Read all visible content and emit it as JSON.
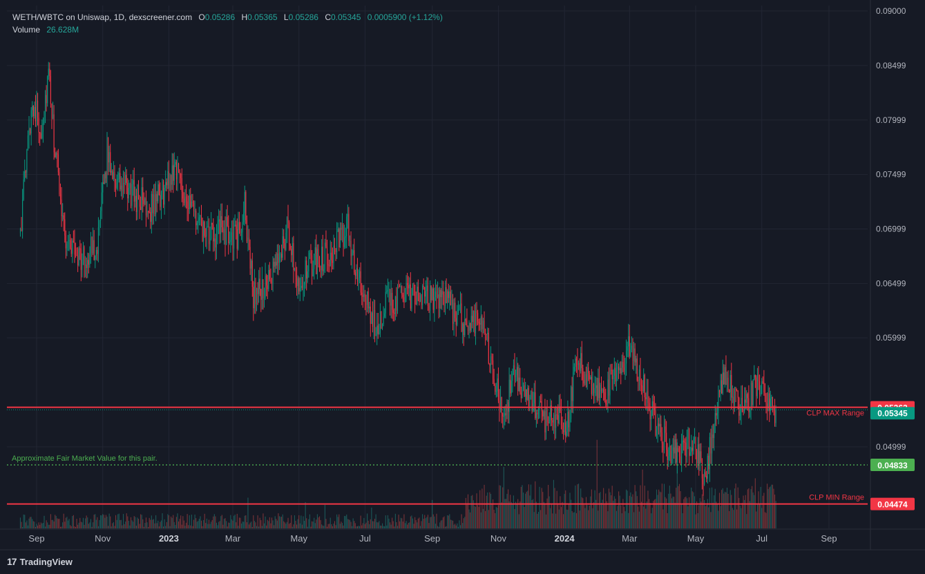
{
  "header": {
    "symbol": "WETH/WBTC on Uniswap, 1D, dexscreener.com",
    "ohlc": {
      "o_label": "O",
      "o": "0.05286",
      "h_label": "H",
      "h": "0.05365",
      "l_label": "L",
      "l": "0.05286",
      "c_label": "C",
      "c": "0.05345",
      "change": "0.0005900 (+1.12%)"
    },
    "volume_label": "Volume",
    "volume": "26.628M"
  },
  "footer": {
    "brand": "TradingView",
    "logo": "17"
  },
  "colors": {
    "up": "#26a69a",
    "down": "#ef5350",
    "background": "#161a25",
    "grid": "#222633",
    "red_line": "#f23645",
    "green_label": "#4caf50"
  },
  "chart_data": {
    "type": "candlestick",
    "title": "",
    "y_ticks": [
      "0.09000",
      "0.08499",
      "0.07999",
      "0.07499",
      "0.06999",
      "0.06499",
      "0.05999",
      "0.04999"
    ],
    "ylim": [
      0.0425,
      0.0905
    ],
    "x_ticks": [
      "Sep",
      "Nov",
      "2023",
      "Mar",
      "May",
      "Jul",
      "Sep",
      "Nov",
      "2024",
      "Mar",
      "May",
      "Jul",
      "Sep"
    ],
    "x_ticks_bold": [
      "2023",
      "2024"
    ],
    "date_range": [
      "2022-08-17",
      "2024-07-14"
    ],
    "close_anchors": [
      [
        "2022-08-17",
        0.07
      ],
      [
        "2022-08-28",
        0.082
      ],
      [
        "2022-09-05",
        0.079
      ],
      [
        "2022-09-12",
        0.084
      ],
      [
        "2022-09-17",
        0.078
      ],
      [
        "2022-09-28",
        0.069
      ],
      [
        "2022-10-15",
        0.067
      ],
      [
        "2022-10-28",
        0.069
      ],
      [
        "2022-11-05",
        0.077
      ],
      [
        "2022-11-15",
        0.074
      ],
      [
        "2022-12-01",
        0.073
      ],
      [
        "2022-12-15",
        0.072
      ],
      [
        "2022-12-28",
        0.0735
      ],
      [
        "2023-01-07",
        0.076
      ],
      [
        "2023-01-20",
        0.072
      ],
      [
        "2023-02-05",
        0.069
      ],
      [
        "2023-02-20",
        0.07
      ],
      [
        "2023-03-05",
        0.069
      ],
      [
        "2023-03-12",
        0.072
      ],
      [
        "2023-03-20",
        0.064
      ],
      [
        "2023-04-05",
        0.065
      ],
      [
        "2023-04-20",
        0.07
      ],
      [
        "2023-05-01",
        0.065
      ],
      [
        "2023-05-15",
        0.067
      ],
      [
        "2023-06-01",
        0.068
      ],
      [
        "2023-06-15",
        0.07
      ],
      [
        "2023-06-25",
        0.065
      ],
      [
        "2023-07-10",
        0.061
      ],
      [
        "2023-07-20",
        0.063
      ],
      [
        "2023-08-05",
        0.064
      ],
      [
        "2023-08-25",
        0.0635
      ],
      [
        "2023-09-10",
        0.064
      ],
      [
        "2023-09-25",
        0.062
      ],
      [
        "2023-10-05",
        0.061
      ],
      [
        "2023-10-15",
        0.0625
      ],
      [
        "2023-10-25",
        0.058
      ],
      [
        "2023-11-05",
        0.0525
      ],
      [
        "2023-11-15",
        0.0565
      ],
      [
        "2023-12-01",
        0.054
      ],
      [
        "2023-12-15",
        0.0525
      ],
      [
        "2023-12-25",
        0.053
      ],
      [
        "2024-01-05",
        0.052
      ],
      [
        "2024-01-11",
        0.059
      ],
      [
        "2024-01-22",
        0.056
      ],
      [
        "2024-02-05",
        0.0545
      ],
      [
        "2024-02-20",
        0.057
      ],
      [
        "2024-03-01",
        0.059
      ],
      [
        "2024-03-10",
        0.057
      ],
      [
        "2024-03-22",
        0.053
      ],
      [
        "2024-04-05",
        0.05
      ],
      [
        "2024-04-15",
        0.049
      ],
      [
        "2024-04-28",
        0.051
      ],
      [
        "2024-05-10",
        0.047
      ],
      [
        "2024-05-20",
        0.054
      ],
      [
        "2024-05-28",
        0.056
      ],
      [
        "2024-06-10",
        0.054
      ],
      [
        "2024-06-20",
        0.0545
      ],
      [
        "2024-06-28",
        0.056
      ],
      [
        "2024-07-05",
        0.054
      ],
      [
        "2024-07-14",
        0.05345
      ]
    ],
    "price_lines": [
      {
        "name": "CLP MAX Range",
        "value": 0.05362,
        "label": "0.05362",
        "color": "#f23645"
      },
      {
        "name": "CLP MIN Range",
        "value": 0.04474,
        "label": "0.04474",
        "color": "#f23645"
      },
      {
        "name": "Approximate Fair Market Value for this pair.",
        "value": 0.04833,
        "label": "0.04833",
        "color": "#4caf50"
      }
    ],
    "current_price": {
      "value": 0.05345,
      "label": "0.05345",
      "color": "#089981"
    }
  }
}
